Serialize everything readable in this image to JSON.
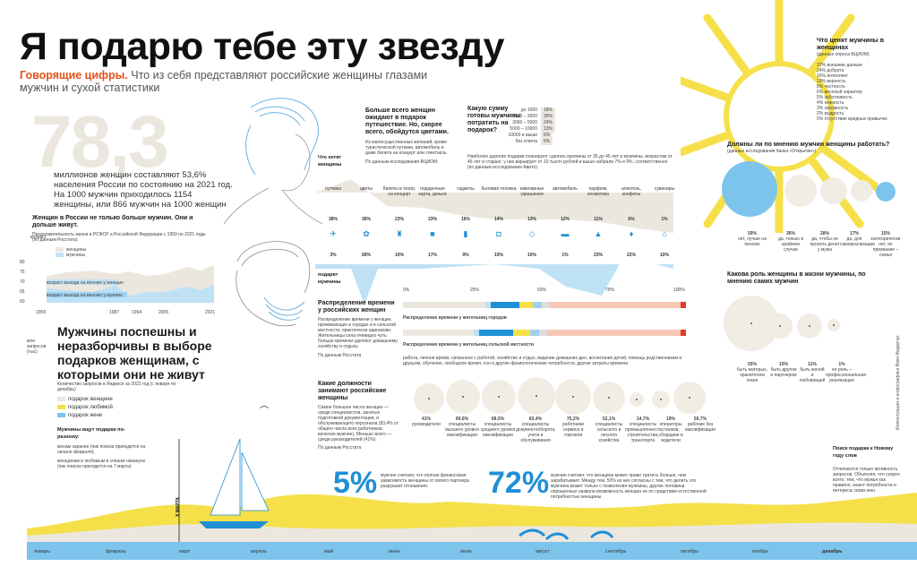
{
  "header": {
    "title": "Я подарю тебе эту звезду",
    "subtitle_lead": "Говорящие цифры.",
    "subtitle_rest": "Что из себя представляют российские женщины глазами мужчин и сухой статистики"
  },
  "population": {
    "big_number": "78,3",
    "text": "миллионов женщин составляют 53,6% населения России по состоянию на 2021 год. На 1000 мужчин приходилось 1154 женщины, или 866 мужчин на 1000 женщин"
  },
  "life": {
    "heading": "Женщин в России не только больше мужчин. Они и дольше живут.",
    "sub": "Продолжительность жизни в РСФСР и Российской Федерации с 1959 по 2021 годы (по данным Росстата)",
    "y_title": "возраст",
    "legend_women": "женщины",
    "legend_men": "мужчины",
    "y_ticks": [
      "80",
      "75",
      "70",
      "65",
      "60"
    ],
    "x_ticks": [
      "1959",
      "1987",
      "1994",
      "2005",
      "2021"
    ],
    "retire_women": "возраст выхода на пенсию у женщин",
    "retire_men": "возраст выхода на пенсию у мужчин"
  },
  "search": {
    "heading": "Мужчины поспешны и неразборчивы в выборе подарков женщинам, с которыми они не живут",
    "sub": "Количество запросов в Яндексе за 2022 год (с января по декабрь)",
    "axis_label": "млн запросов (тыс)",
    "legend_1": "подарок женщине",
    "legend_2": "подарок любимой",
    "legend_3": "подарок жене",
    "notes_head": "Мужчины ищут подарки по-разному:",
    "note_1": "женам заранее (пик поиска приходится на начало февраля);",
    "note_2": "женщинам и любимым в спешке накануне (пик поиска приходится на 7 марта)",
    "march_mark": "8 МАРТА",
    "months": [
      "январь",
      "февраль",
      "март",
      "апрель",
      "май",
      "июнь",
      "июль",
      "август",
      "сентябрь",
      "октябрь",
      "ноябрь",
      "декабрь"
    ]
  },
  "gifts": {
    "heading": "Больше всего женщин ожидают в подарок путешествие. Но, скорее всего, обойдутся цветами.",
    "text": "Из малосущественных желаний, кроме туристической путевки, автомобиль и даже билета на концерт или спектакль.",
    "source": "По данным исследования ВЦИОМ.",
    "want_label": "Что хотят женщины",
    "give_label": "Что им подарят мужчины",
    "categories": [
      "путевка",
      "цветы",
      "билеты в театр, на концерт",
      "подарочная карта, деньги",
      "гаджеты",
      "бытовая техника",
      "ювелирные украшения",
      "автомобиль",
      "парфюм, косметика",
      "алкоголь, конфеты",
      "сувениры"
    ],
    "want": [
      "38%",
      "36%",
      "23%",
      "23%",
      "16%",
      "14%",
      "13%",
      "12%",
      "11%",
      "6%",
      "1%"
    ],
    "give": [
      "3%",
      "68%",
      "10%",
      "17%",
      "9%",
      "19%",
      "10%",
      "1%",
      "23%",
      "22%",
      "10%"
    ],
    "sums_heading": "Какую сумму готовы мужчины потратить на подарок?",
    "sums": [
      {
        "range": "до 1000",
        "pct": "18%"
      },
      {
        "range": "1000 – 3000",
        "pct": "35%"
      },
      {
        "range": "3000 – 5000",
        "pct": "24%"
      },
      {
        "range": "5000 – 10000",
        "pct": "13%"
      },
      {
        "range": "10000 и выше",
        "pct": "6%"
      },
      {
        "range": "без ответа",
        "pct": "5%"
      }
    ],
    "sums_note": "Наиболее дорогие подарки планируют сделать мужчины от 35 до 45 лет и мужчины, возрастом от 46 лет и старше: у них варьирует от 10 тысяч рублей и выше набрали 7% и 9%, соответственно (по данным исследования Авито)."
  },
  "time": {
    "heading": "Распределение времени у российских женщин",
    "text": "Распределение времени у женщин, проживающих в городах и в сельской местности, практически одинаково. Жительницы села очевидно чуть больше времени уделяют домашнему хозяйству и отдыху.",
    "source": "По данным Росстата",
    "scale": [
      "0%",
      "25%",
      "50%",
      "75%",
      "100%"
    ],
    "city_label": "Распределение времени у жительниц городов",
    "rural_label": "Распределение времени у жительниц сельской местности",
    "legend": "работа, личное время, связанное с работой, хозяйство и отдых, ведение домашних дел, воспитание детей, помощь родственникам и друзьям, обучение, свободное время, сон и другие физиологические потребности, другие затраты времени"
  },
  "jobs": {
    "heading": "Какие должности занимают российские женщины",
    "text": "Самое большое число женщин — среди специалистов, занятых подготовкой документации, и обслуживающего персонала (83,4% от общего числа всех работников, включая мужчин). Меньше всего — среди руководителей (41%).",
    "source": "По данным Росстата",
    "items": [
      {
        "pct": "41%",
        "label": "руководители"
      },
      {
        "pct": "69,6%",
        "label": "специалисты высшего уровня квалификации"
      },
      {
        "pct": "68,5%",
        "label": "специалисты среднего уровня квалификации"
      },
      {
        "pct": "83,4%",
        "label": "специалисты документооборота, учета и обслуживания"
      },
      {
        "pct": "75,2%",
        "label": "работники сервиса и торговли"
      },
      {
        "pct": "52,1%",
        "label": "специалисты сельского и лесного хозяйства"
      },
      {
        "pct": "14,7%",
        "label": "специалисты промышленности, строительства, транспорта"
      },
      {
        "pct": "19%",
        "label": "операторы станков, сборщики и водители"
      },
      {
        "pct": "59,7%",
        "label": "рабочие без квалификации"
      }
    ]
  },
  "stats": {
    "pct5": "5%",
    "pct5_text": "мужчин считают, что полная финансовая зависимость женщины от своего партнера разрушает отношения.",
    "pct72": "72%",
    "pct72_text": "мужчин считают, что женщина может право тратить больше, чем зарабатывает. Между тем, 50% из них согласны с тем, что делить это мужчина может только с позволения мужчины, другие половина опрошенных назвала возможность женщин не по средствам естественной потребностью женщины."
  },
  "values": {
    "heading": "Что ценят мужчины в женщинах",
    "sub": "(данные опроса ВЦИОМ)",
    "items": [
      "37% внешние данные",
      "24% доброта",
      "16% интеллект",
      "19% верность",
      "8% честность",
      "6% веселый характер",
      "5% заботливость",
      "4% нежность",
      "3% скромность",
      "2% мудрость",
      "5% отсутствие вредных привычек"
    ]
  },
  "work": {
    "heading": "Должны ли по мнению мужчин женщины работать?",
    "sub": "(данные исследования банка «Открытие»)",
    "items": [
      {
        "pct": "59%",
        "label": "нет, лучше на пенсию"
      },
      {
        "pct": "36%",
        "label": "да, только в крайнем случае"
      },
      {
        "pct": "28%",
        "label": "да, чтобы не просить денег у мужа"
      },
      {
        "pct": "17%",
        "label": "да, для самореализации"
      },
      {
        "pct": "15%",
        "label": "категорически нет, ее призвание – семья"
      }
    ]
  },
  "role": {
    "heading": "Какова роль женщины в жизни мужчины, по мнению самих мужчин",
    "items": [
      {
        "pct": "55%",
        "label": "быть матерью, хранителем очага"
      },
      {
        "pct": "10%",
        "label": "быть другом и партнером"
      },
      {
        "pct": "11%",
        "label": "быть женой и любовницей"
      },
      {
        "pct": "1%",
        "label": "ее роль – профессиональная реализация"
      }
    ]
  },
  "side_search": {
    "heading": "Поиск подарка к Новому году слов",
    "text": "Отличаются только активность запросов. Объясняя, что скорее всего, тем, что мужья как правило, знают потребности и интересы своих жен."
  },
  "credit": "Иллюстрации и инфографика Вики Федорчук"
}
